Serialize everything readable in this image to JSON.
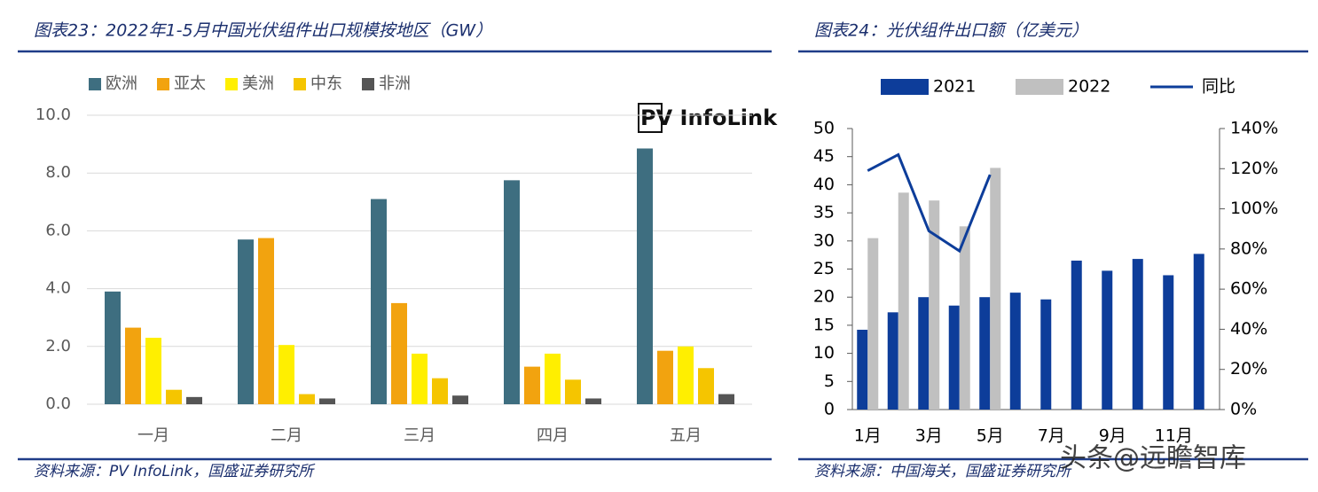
{
  "chart_data": [
    {
      "type": "bar",
      "title": "图表23：2022年1-5月中国光伏组件出口规模按地区（GW）",
      "source": "资料来源：PV InfoLink，国盛证券研究所",
      "annotation": "PV InfoLink",
      "categories": [
        "一月",
        "二月",
        "三月",
        "四月",
        "五月"
      ],
      "series": [
        {
          "name": "欧洲",
          "color": "#3e6e80",
          "values": [
            3.9,
            5.7,
            7.1,
            7.75,
            8.85
          ]
        },
        {
          "name": "亚太",
          "color": "#f2a30f",
          "values": [
            2.65,
            5.75,
            3.5,
            1.3,
            1.85
          ]
        },
        {
          "name": "美洲",
          "color": "#ffef00",
          "values": [
            2.3,
            2.05,
            1.75,
            1.75,
            2.0
          ]
        },
        {
          "name": "中东",
          "color": "#f5c500",
          "values": [
            0.5,
            0.35,
            0.9,
            0.85,
            1.25
          ]
        },
        {
          "name": "非洲",
          "color": "#555555",
          "values": [
            0.25,
            0.2,
            0.3,
            0.2,
            0.35
          ]
        }
      ],
      "ylim": [
        0,
        10
      ],
      "yticks": [
        {
          "value": 0,
          "label": "0.0"
        },
        {
          "value": 2,
          "label": "2.0"
        },
        {
          "value": 4,
          "label": "4.0"
        },
        {
          "value": 6,
          "label": "6.0"
        },
        {
          "value": 8,
          "label": "8.0"
        },
        {
          "value": 10,
          "label": "10.0"
        }
      ],
      "grid": true
    },
    {
      "type": "bar",
      "title": "图表24：光伏组件出口额（亿美元）",
      "source": "资料来源：中国海关，国盛证券研究所",
      "watermark": "头条@远瞻智库",
      "categories": [
        "1月",
        null,
        "3月",
        null,
        "5月",
        null,
        "7月",
        null,
        "9月",
        null,
        "11月",
        null
      ],
      "series": [
        {
          "name": "2021",
          "color": "#0d3d9a",
          "values": [
            14.2,
            17.3,
            20,
            18.5,
            20,
            20.8,
            19.6,
            26.5,
            24.7,
            26.8,
            23.9,
            27.7
          ]
        },
        {
          "name": "2022",
          "color": "#c0c0c0",
          "values": [
            30.5,
            38.6,
            37.2,
            32.6,
            43,
            null,
            null,
            null,
            null,
            null,
            null,
            null
          ]
        },
        {
          "name": "同比",
          "color": "#0d3d9a",
          "type": "line",
          "axis": "y2",
          "values": [
            119,
            127,
            89,
            79,
            117,
            null,
            null,
            null,
            null,
            null,
            null,
            null
          ]
        }
      ],
      "ylim": [
        0,
        50
      ],
      "yticks": [
        0,
        5,
        10,
        15,
        20,
        25,
        30,
        35,
        40,
        45,
        50
      ],
      "y2lim": [
        0,
        140
      ],
      "y2ticks": [
        {
          "value": 0,
          "label": "0%"
        },
        {
          "value": 20,
          "label": "20%"
        },
        {
          "value": 40,
          "label": "40%"
        },
        {
          "value": 60,
          "label": "60%"
        },
        {
          "value": 80,
          "label": "80%"
        },
        {
          "value": 100,
          "label": "100%"
        },
        {
          "value": 120,
          "label": "120%"
        },
        {
          "value": 140,
          "label": "140%"
        }
      ],
      "grid": false
    }
  ]
}
